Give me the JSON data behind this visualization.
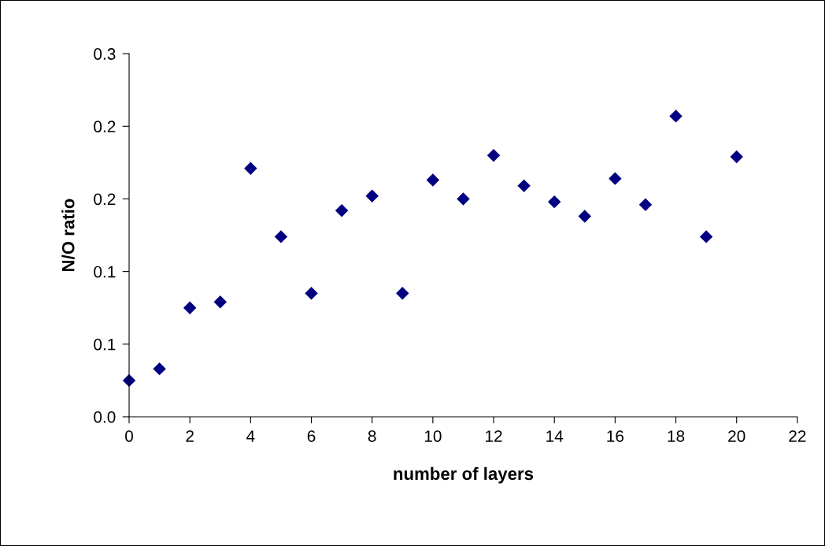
{
  "chart_data": {
    "type": "scatter",
    "xlabel": "number of layers",
    "ylabel": "N/O ratio",
    "x": [
      0,
      1,
      2,
      3,
      4,
      5,
      6,
      7,
      8,
      9,
      10,
      11,
      12,
      13,
      14,
      15,
      16,
      17,
      18,
      19,
      20
    ],
    "series": [
      {
        "color": "#000080",
        "values": [
          0.025,
          0.033,
          0.075,
          0.079,
          0.171,
          0.124,
          0.085,
          0.142,
          0.152,
          0.085,
          0.163,
          0.15,
          0.18,
          0.159,
          0.148,
          0.138,
          0.164,
          0.146,
          0.207,
          0.124,
          0.179
        ]
      }
    ],
    "marker": "diamond",
    "grid": false,
    "xlim": [
      0,
      22
    ],
    "xticks": [
      0,
      2,
      4,
      6,
      8,
      10,
      12,
      14,
      16,
      18,
      20,
      22
    ],
    "ylim": [
      0,
      0.25
    ],
    "yticks": [
      {
        "value": 0,
        "label": "0.0"
      },
      {
        "value": 0.05,
        "label": "0.1"
      },
      {
        "value": 0.1,
        "label": "0.1"
      },
      {
        "value": 0.15,
        "label": "0.2"
      },
      {
        "value": 0.2,
        "label": "0.2"
      },
      {
        "value": 0.25,
        "label": "0.3"
      }
    ]
  }
}
